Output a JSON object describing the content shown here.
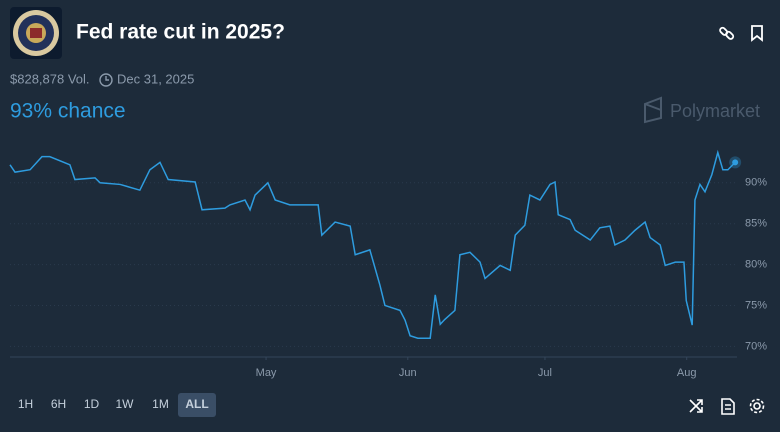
{
  "header": {
    "title": "Fed rate cut in 2025?",
    "volume": "$828,878 Vol.",
    "end_date": "Dec 31, 2025",
    "chance": "93% chance",
    "brand": "Polymarket"
  },
  "chart_data": {
    "type": "line",
    "color": "#2e9cdf",
    "grid": true,
    "x": [
      65,
      66.1,
      69.4,
      72.0,
      73.7,
      78.1,
      79.2,
      83.6,
      84.7,
      89.1,
      93.4,
      95.6,
      97.8,
      99.6,
      105.5,
      107.0,
      112.0,
      113.1,
      116.4,
      117.5,
      118.6,
      121.4,
      123.0,
      126.2,
      132.4,
      133.2,
      136.1,
      139.4,
      140.5,
      143.7,
      145.9,
      147.0,
      150.3,
      151.4,
      152.5,
      154.2,
      156.9,
      158.0,
      159.1,
      160.1,
      162.3,
      163.4,
      165.6,
      167.8,
      168.9,
      172.2,
      174.4,
      175.5,
      177.6,
      178.7,
      180.9,
      183.1,
      184.2,
      184.9,
      187.5,
      188.6,
      191.9,
      194.0,
      196.2,
      197.3,
      199.5,
      201.7,
      203.9,
      205.0,
      207.2,
      208.3,
      210.5,
      212.4,
      212.9,
      214.2,
      214.8,
      215.9,
      217.0,
      218.5,
      219.8,
      220.9,
      222.0,
      223.6
    ],
    "values": [
      92.2,
      91.3,
      91.6,
      93.2,
      93.2,
      92.2,
      90.4,
      90.6,
      90.0,
      89.8,
      89.1,
      91.6,
      92.5,
      90.4,
      90.1,
      86.7,
      86.9,
      87.3,
      87.9,
      86.7,
      88.5,
      90.0,
      87.9,
      87.3,
      87.3,
      83.6,
      85.2,
      84.7,
      81.2,
      81.8,
      77.5,
      75.0,
      74.4,
      73.2,
      71.3,
      71.0,
      71.0,
      76.3,
      72.7,
      73.3,
      74.4,
      81.2,
      81.5,
      80.3,
      78.3,
      79.9,
      79.3,
      83.6,
      84.8,
      88.5,
      87.9,
      89.8,
      90.1,
      86.1,
      85.5,
      84.2,
      83.0,
      84.5,
      84.7,
      82.4,
      83.0,
      84.2,
      85.2,
      83.3,
      82.4,
      79.9,
      80.3,
      80.3,
      75.6,
      72.6,
      87.9,
      89.8,
      88.9,
      91.0,
      93.7,
      91.6,
      91.6,
      92.5
    ],
    "xlim": [
      65,
      224
    ],
    "ylim": [
      68.7,
      94.5
    ],
    "xticks": [
      {
        "value": 121,
        "label": "May"
      },
      {
        "value": 152,
        "label": "Jun"
      },
      {
        "value": 182,
        "label": "Jul"
      },
      {
        "value": 213,
        "label": "Aug"
      }
    ],
    "yticks": [
      {
        "value": 70,
        "label": "70%"
      },
      {
        "value": 75,
        "label": "75%"
      },
      {
        "value": 80,
        "label": "80%"
      },
      {
        "value": 85,
        "label": "85%"
      },
      {
        "value": 90,
        "label": "90%"
      }
    ]
  },
  "range_buttons": [
    "1H",
    "6H",
    "1D",
    "1W",
    "1M",
    "ALL"
  ],
  "active_range_index": 5
}
